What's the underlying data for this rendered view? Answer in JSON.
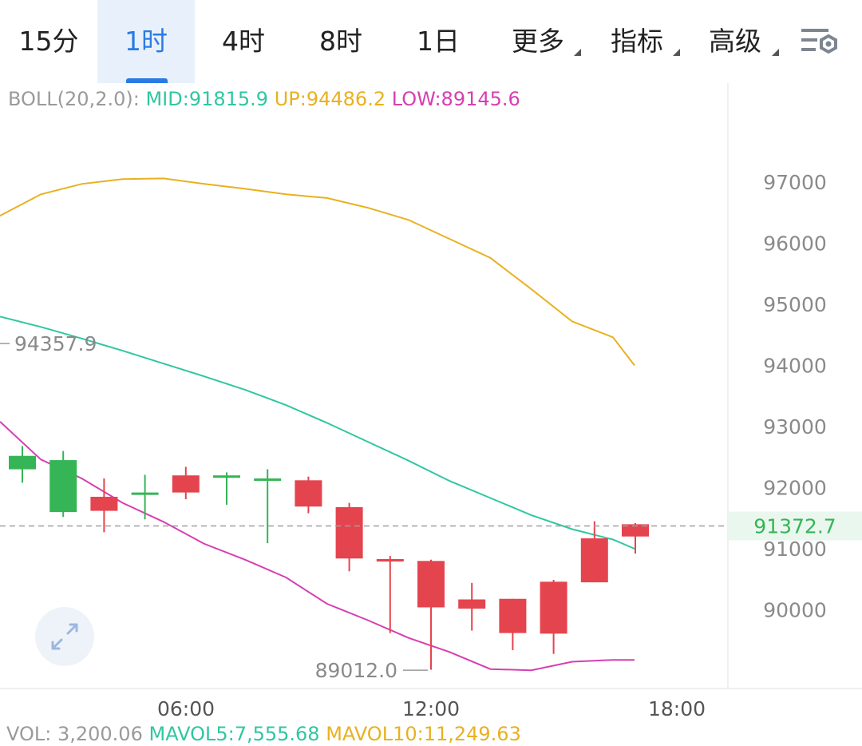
{
  "tabs": [
    {
      "label": "15分",
      "active": false,
      "dropdown": false
    },
    {
      "label": "1时",
      "active": true,
      "dropdown": false
    },
    {
      "label": "4时",
      "active": false,
      "dropdown": false
    },
    {
      "label": "8时",
      "active": false,
      "dropdown": false
    },
    {
      "label": "1日",
      "active": false,
      "dropdown": false
    },
    {
      "label": "更多",
      "active": false,
      "dropdown": true
    },
    {
      "label": "指标",
      "active": false,
      "dropdown": true
    },
    {
      "label": "高级",
      "active": false,
      "dropdown": true
    }
  ],
  "settings_icon": "chart-settings-icon",
  "indicator": {
    "name": "BOLL(20,2.0):",
    "mid": "MID:91815.9",
    "up": "UP:94486.2",
    "low": "LOW:89145.6"
  },
  "colors": {
    "up_candle": "#35b556",
    "down_candle": "#e4444e",
    "mid_line": "#2fc7a0",
    "upper_band": "#e8b120",
    "lower_band": "#d63fb1",
    "accent": "#2b7be5"
  },
  "chart_data": {
    "type": "candlestick",
    "y_ticks": [
      "97000",
      "96000",
      "95000",
      "94000",
      "93000",
      "92000",
      "91000",
      "90000"
    ],
    "x_ticks": [
      "06:00",
      "12:00",
      "18:00"
    ],
    "current_price": "91372.7",
    "high_label": "94357.9",
    "low_label": "89012.0",
    "candles": [
      {
        "o": 92300,
        "c": 92520,
        "h": 92680,
        "l": 92080
      },
      {
        "o": 91600,
        "c": 92450,
        "h": 92600,
        "l": 91520
      },
      {
        "o": 91850,
        "c": 91620,
        "h": 92150,
        "l": 91270
      },
      {
        "o": 91890,
        "c": 91920,
        "h": 92210,
        "l": 91480
      },
      {
        "o": 92200,
        "c": 91920,
        "h": 92340,
        "l": 91810
      },
      {
        "o": 92180,
        "c": 92200,
        "h": 92250,
        "l": 91720
      },
      {
        "o": 92130,
        "c": 92150,
        "h": 92300,
        "l": 91090
      },
      {
        "o": 92120,
        "c": 91690,
        "h": 92180,
        "l": 91580
      },
      {
        "o": 91680,
        "c": 90840,
        "h": 91750,
        "l": 90630
      },
      {
        "o": 90830,
        "c": 90820,
        "h": 90880,
        "l": 89620
      },
      {
        "o": 90800,
        "c": 90040,
        "h": 90820,
        "l": 89020
      },
      {
        "o": 90170,
        "c": 90020,
        "h": 90440,
        "l": 89660
      },
      {
        "o": 90180,
        "c": 89620,
        "h": 90180,
        "l": 89340
      },
      {
        "o": 90460,
        "c": 89610,
        "h": 90490,
        "l": 89280
      },
      {
        "o": 91170,
        "c": 90450,
        "h": 91450,
        "l": 90450
      },
      {
        "o": 91400,
        "c": 91200,
        "h": 91420,
        "l": 90920
      }
    ],
    "mid_band": [
      94800,
      94630,
      94440,
      94240,
      94030,
      93820,
      93600,
      93350,
      93060,
      92750,
      92440,
      92110,
      91830,
      91550,
      91320,
      91150,
      91000
    ],
    "upper_band": [
      96450,
      96800,
      96970,
      97050,
      97060,
      96970,
      96890,
      96800,
      96740,
      96580,
      96380,
      96070,
      95760,
      95250,
      94720,
      94460,
      94000
    ],
    "lower_band": [
      93080,
      92460,
      92150,
      91750,
      91440,
      91080,
      90820,
      90530,
      90100,
      89830,
      89540,
      89310,
      89030,
      89010,
      89150,
      89180,
      89180
    ]
  },
  "expand_icon": "expand-arrows-icon",
  "volume": {
    "name": "VOL: 3,200.06",
    "ma5": "MAVOL5:7,555.68",
    "ma10": "MAVOL10:11,249.63"
  }
}
